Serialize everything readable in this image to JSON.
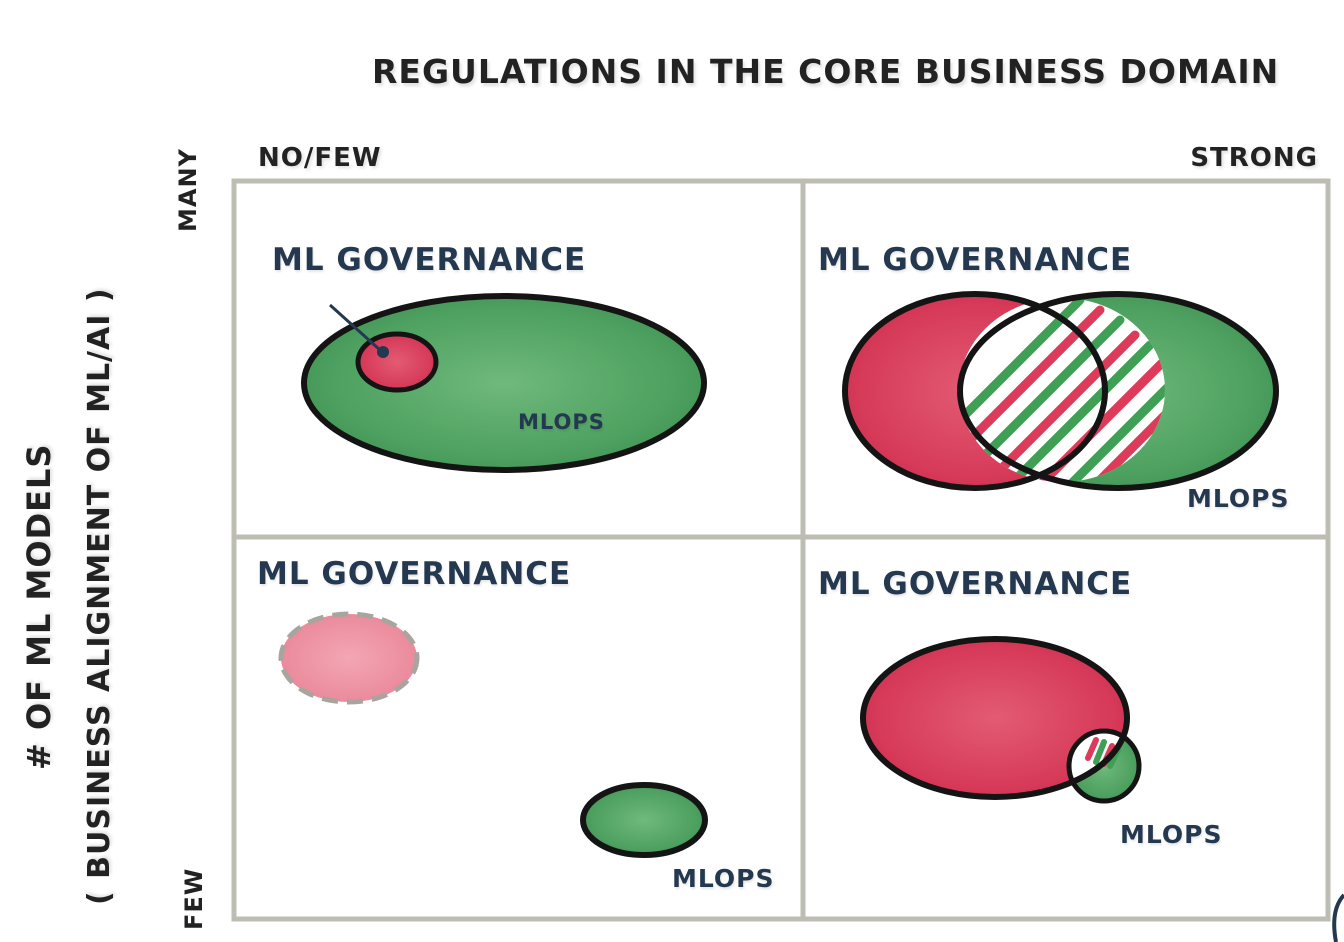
{
  "title": "REGULATIONS IN THE CORE BUSINESS DOMAIN",
  "x_axis": {
    "low": "NO/FEW",
    "high": "STRONG"
  },
  "y_axis": {
    "title_line1": "# OF ML MODELS",
    "title_line2": "( BUSINESS ALIGNMENT OF ML/AI )",
    "high": "MANY",
    "low": "FEW"
  },
  "quadrants": {
    "top_left": {
      "governance_label": "ML GOVERNANCE",
      "mlops_label": "MLOPS"
    },
    "top_right": {
      "governance_label": "ML GOVERNANCE",
      "mlops_label": "MLOPS"
    },
    "bottom_left": {
      "governance_label": "ML GOVERNANCE",
      "mlops_label": "MLOPS"
    },
    "bottom_right": {
      "governance_label": "ML GOVERNANCE",
      "mlops_label": "MLOPS"
    }
  },
  "colors": {
    "governance": "#dc3c5a",
    "mlops": "#3f9f55",
    "outline": "#141414",
    "grid": "#bdbdb3",
    "label": "#24384f"
  }
}
